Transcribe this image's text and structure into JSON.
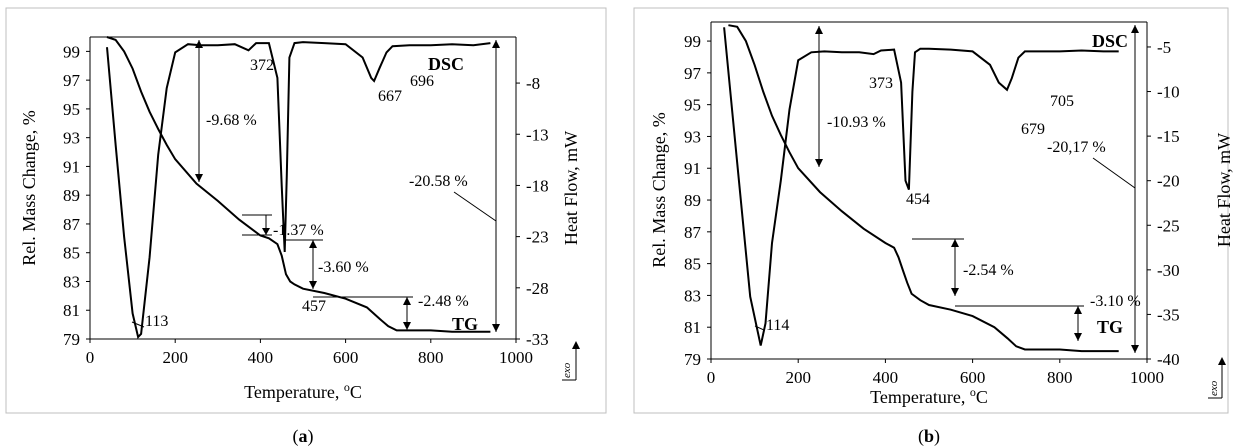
{
  "chart_data": [
    {
      "type": "line",
      "panel_label": "(a)",
      "panel_letter": "a",
      "xlabel": "Temperature, ",
      "xlabel_unit_super": "o",
      "xlabel_unit": "C",
      "ylabel": "Rel. Mass Change, %",
      "y2label": "Heat Flow, mW",
      "xlim": [
        0,
        1000
      ],
      "ylim": [
        79,
        100
      ],
      "y2lim": [
        -33,
        -3.5
      ],
      "x_ticks": [
        0,
        200,
        400,
        600,
        800,
        1000
      ],
      "y_ticks": [
        79,
        81,
        83,
        85,
        87,
        89,
        91,
        93,
        95,
        97,
        99
      ],
      "y2_ticks": [
        -33,
        -28,
        -23,
        -18,
        -13,
        -8
      ],
      "corner_mark": "exo",
      "series": [
        {
          "name": "TG",
          "axis": "left",
          "x": [
            40,
            60,
            80,
            100,
            120,
            140,
            160,
            180,
            200,
            250,
            300,
            350,
            400,
            420,
            440,
            450,
            460,
            470,
            480,
            500,
            550,
            600,
            650,
            680,
            700,
            720,
            750,
            800,
            850,
            900,
            940
          ],
          "y": [
            100,
            99.8,
            99.0,
            97.8,
            96.2,
            94.8,
            93.6,
            92.5,
            91.5,
            89.8,
            88.6,
            87.3,
            86.2,
            86.0,
            85.6,
            84.8,
            83.5,
            83.0,
            82.8,
            82.5,
            82.2,
            81.8,
            81.2,
            80.4,
            79.9,
            79.6,
            79.6,
            79.6,
            79.5,
            79.5,
            79.5
          ]
        },
        {
          "name": "DSC",
          "axis": "right",
          "x": [
            40,
            60,
            80,
            100,
            113,
            120,
            140,
            160,
            180,
            200,
            230,
            260,
            300,
            340,
            372,
            390,
            420,
            440,
            450,
            457,
            462,
            468,
            480,
            500,
            550,
            600,
            640,
            660,
            667,
            680,
            696,
            710,
            750,
            800,
            850,
            900,
            940
          ],
          "y": [
            -4.5,
            -14.0,
            -23.0,
            -30.5,
            -32.8,
            -32.5,
            -25.0,
            -15.0,
            -8.5,
            -5.0,
            -4.2,
            -4.3,
            -4.3,
            -4.2,
            -4.8,
            -4.1,
            -4.1,
            -7.5,
            -18.0,
            -24.5,
            -17.0,
            -5.5,
            -4.1,
            -4.0,
            -4.1,
            -4.2,
            -5.5,
            -7.5,
            -7.8,
            -6.5,
            -5.0,
            -4.4,
            -4.3,
            -4.3,
            -4.2,
            -4.3,
            -4.1
          ]
        }
      ],
      "annotations": {
        "peak_113": "113",
        "peak_372": "372",
        "peak_457": "457",
        "peak_667": "667",
        "peak_696": "696",
        "step_1": "-9.68 %",
        "step_2": "-1.37 %",
        "step_3": "-3.60 %",
        "step_4": "-2.48 %",
        "total": "-20.58 %",
        "dsc_label": "DSC",
        "tg_label": "TG"
      }
    },
    {
      "type": "line",
      "panel_label": "(b)",
      "panel_letter": "b",
      "xlabel": "Temperature, ",
      "xlabel_unit_super": "o",
      "xlabel_unit": "C",
      "ylabel": "Rel. Mass Change, %",
      "y2label": "Heat Flow, mW",
      "xlim": [
        0,
        1000
      ],
      "ylim": [
        79,
        100.2
      ],
      "y2lim": [
        -40,
        -2.2
      ],
      "x_ticks": [
        0,
        200,
        400,
        600,
        800,
        1000
      ],
      "y_ticks": [
        79,
        81,
        83,
        85,
        87,
        89,
        91,
        93,
        95,
        97,
        99
      ],
      "y2_ticks": [
        -40,
        -35,
        -30,
        -25,
        -20,
        -15,
        -10,
        -5
      ],
      "corner_mark": "exo",
      "series": [
        {
          "name": "TG",
          "axis": "left",
          "x": [
            40,
            60,
            80,
            100,
            120,
            140,
            160,
            180,
            200,
            250,
            300,
            350,
            400,
            420,
            430,
            440,
            450,
            460,
            480,
            500,
            550,
            600,
            650,
            680,
            700,
            720,
            750,
            800,
            850,
            900,
            935
          ],
          "y": [
            100,
            99.9,
            99.0,
            97.5,
            95.8,
            94.3,
            93.1,
            92.0,
            91.0,
            89.5,
            88.3,
            87.2,
            86.3,
            86.0,
            85.4,
            84.6,
            83.8,
            83.1,
            82.7,
            82.4,
            82.1,
            81.7,
            81.0,
            80.3,
            79.8,
            79.6,
            79.6,
            79.6,
            79.5,
            79.5,
            79.5
          ]
        },
        {
          "name": "DSC",
          "axis": "right",
          "x": [
            30,
            60,
            90,
            114,
            125,
            140,
            160,
            180,
            200,
            230,
            260,
            300,
            340,
            373,
            390,
            420,
            436,
            446,
            454,
            462,
            468,
            480,
            500,
            550,
            600,
            640,
            660,
            679,
            690,
            705,
            720,
            750,
            800,
            850,
            900,
            935
          ],
          "y": [
            -2.8,
            -18.0,
            -33.0,
            -38.5,
            -36.0,
            -27.0,
            -20.0,
            -12.0,
            -6.5,
            -5.6,
            -5.5,
            -5.6,
            -5.6,
            -5.8,
            -5.4,
            -5.3,
            -9.0,
            -20.0,
            -21.0,
            -10.0,
            -5.6,
            -5.2,
            -5.2,
            -5.3,
            -5.5,
            -7.0,
            -9.0,
            -9.8,
            -8.5,
            -6.2,
            -5.5,
            -5.5,
            -5.5,
            -5.4,
            -5.5,
            -5.5
          ]
        }
      ],
      "annotations": {
        "peak_114": "114",
        "peak_373": "373",
        "peak_454": "454",
        "peak_679": "679",
        "peak_705": "705",
        "step_1": "-10.93 %",
        "step_2": "-2.54 %",
        "step_3": "-3.10 %",
        "total": "-20,17 %",
        "dsc_label": "DSC",
        "tg_label": "TG"
      }
    }
  ]
}
